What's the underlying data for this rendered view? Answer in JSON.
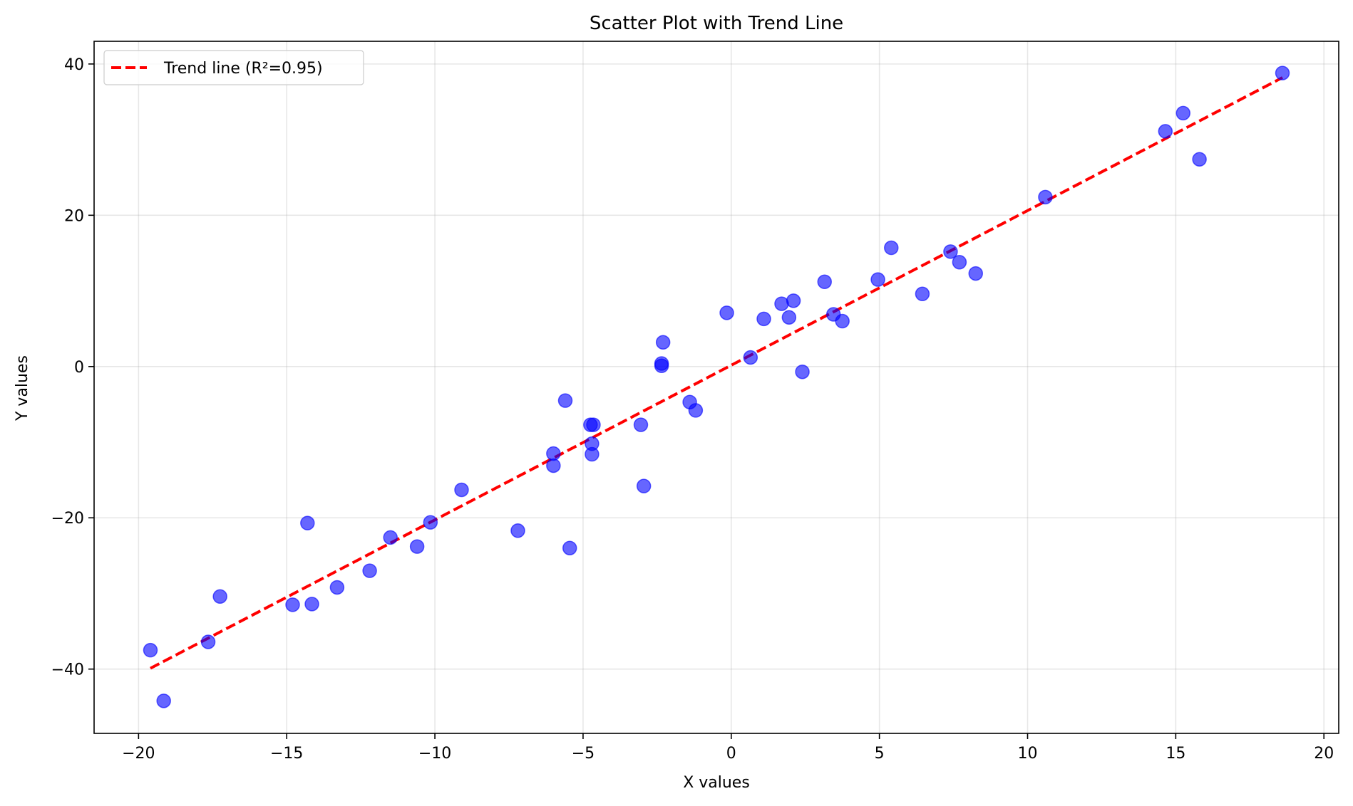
{
  "chart_data": {
    "type": "scatter",
    "title": "Scatter Plot with Trend Line",
    "xlabel": "X values",
    "ylabel": "Y values",
    "xlim": [
      -21.5,
      20.5
    ],
    "ylim": [
      -48.5,
      43
    ],
    "xticks": [
      -20,
      -15,
      -10,
      -5,
      0,
      5,
      10,
      15,
      20
    ],
    "yticks": [
      -40,
      -20,
      0,
      20,
      40
    ],
    "xtick_labels": [
      "−20",
      "−15",
      "−10",
      "−5",
      "0",
      "5",
      "10",
      "15",
      "20"
    ],
    "ytick_labels": [
      "−40",
      "−20",
      "0",
      "20",
      "40"
    ],
    "grid": true,
    "legend_position": "top-left",
    "points": {
      "color": "#0000ff",
      "x": [
        -19.6,
        -19.15,
        -17.65,
        -17.25,
        -14.8,
        -14.3,
        -14.15,
        -13.3,
        -12.2,
        -11.5,
        -10.6,
        -10.15,
        -9.1,
        -7.2,
        -6.0,
        -6.0,
        -5.6,
        -5.45,
        -4.75,
        -4.65,
        -4.7,
        -4.7,
        -3.05,
        -2.95,
        -2.35,
        -2.35,
        -2.3,
        -1.4,
        -1.2,
        -0.15,
        0.65,
        1.1,
        1.7,
        1.95,
        2.1,
        2.4,
        3.15,
        3.45,
        3.75,
        4.95,
        5.4,
        6.45,
        7.4,
        7.7,
        8.25,
        10.6,
        14.65,
        15.25,
        15.8,
        18.6
      ],
      "y": [
        -37.5,
        -44.2,
        -36.4,
        -30.4,
        -31.5,
        -20.7,
        -31.4,
        -29.2,
        -27.0,
        -22.6,
        -23.8,
        -20.6,
        -16.3,
        -21.7,
        -11.5,
        -13.1,
        -4.5,
        -24.0,
        -7.7,
        -7.7,
        -10.2,
        -11.6,
        -7.7,
        -15.8,
        0.4,
        0.1,
        3.2,
        -4.7,
        -5.8,
        7.1,
        1.2,
        6.3,
        8.3,
        6.5,
        8.7,
        -0.7,
        11.2,
        6.9,
        6.0,
        11.5,
        15.7,
        9.6,
        15.2,
        13.8,
        12.3,
        22.4,
        31.1,
        33.5,
        27.4,
        38.8
      ]
    },
    "trend_line": {
      "name": "Trend line (R²=0.95)",
      "color": "#ff0000",
      "x": [
        -19.6,
        18.6
      ],
      "y": [
        -39.9,
        38.2
      ]
    }
  }
}
